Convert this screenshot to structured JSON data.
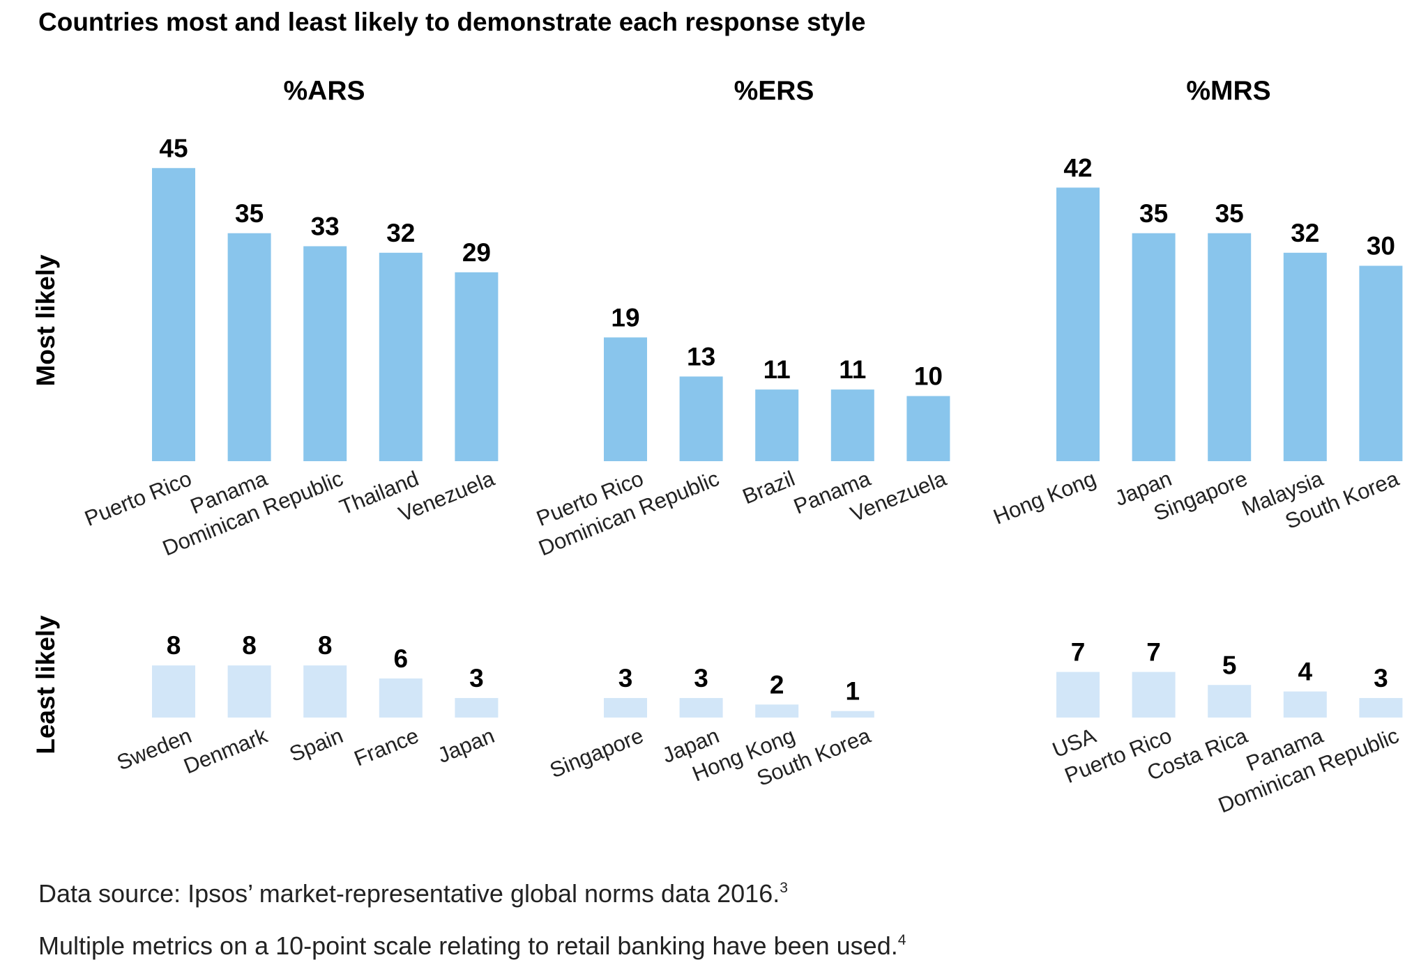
{
  "title": "Countries most and least likely to demonstrate each response style",
  "row_labels": {
    "most": "Most likely",
    "least": "Least likely"
  },
  "footnotes": [
    {
      "text": "Data source: Ipsos’ market-representative global norms data 2016.",
      "sup": "3"
    },
    {
      "text": "Multiple metrics on a 10-point scale relating to retail banking have been used.",
      "sup": "4"
    }
  ],
  "colors": {
    "most": "#89c5ec",
    "least": "#d2e6f8"
  },
  "chart_data": [
    {
      "type": "bar",
      "panel": "%ARS",
      "row": "Most likely",
      "categories": [
        "Puerto Rico",
        "Panama",
        "Dominican Republic",
        "Thailand",
        "Venezuela"
      ],
      "values": [
        45,
        35,
        33,
        32,
        29
      ]
    },
    {
      "type": "bar",
      "panel": "%ERS",
      "row": "Most likely",
      "categories": [
        "Puerto Rico",
        "Dominican Republic",
        "Brazil",
        "Panama",
        "Venezuela"
      ],
      "values": [
        19,
        13,
        11,
        11,
        10
      ]
    },
    {
      "type": "bar",
      "panel": "%MRS",
      "row": "Most likely",
      "categories": [
        "Hong Kong",
        "Japan",
        "Singapore",
        "Malaysia",
        "South Korea"
      ],
      "values": [
        42,
        35,
        35,
        32,
        30
      ]
    },
    {
      "type": "bar",
      "panel": "%ARS",
      "row": "Least likely",
      "categories": [
        "Sweden",
        "Denmark",
        "Spain",
        "France",
        "Japan"
      ],
      "values": [
        8,
        8,
        8,
        6,
        3
      ]
    },
    {
      "type": "bar",
      "panel": "%ERS",
      "row": "Least likely",
      "categories": [
        "Singapore",
        "Japan",
        "Hong Kong",
        "South Korea"
      ],
      "values": [
        3,
        3,
        2,
        1
      ]
    },
    {
      "type": "bar",
      "panel": "%MRS",
      "row": "Least likely",
      "categories": [
        "USA",
        "Puerto Rico",
        "Costa Rica",
        "Panama",
        "Dominican Republic"
      ],
      "values": [
        7,
        7,
        5,
        4,
        3
      ]
    }
  ]
}
